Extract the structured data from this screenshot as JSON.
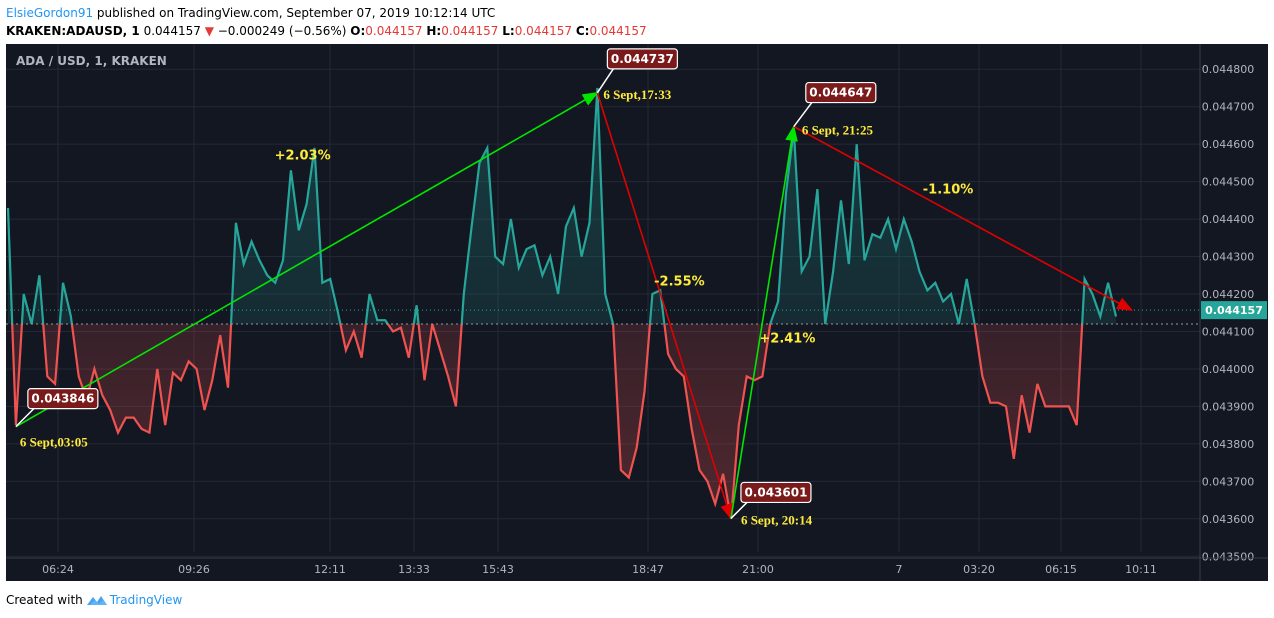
{
  "header": {
    "author": "ElsieGordon91",
    "published": "published on TradingView.com, September 07, 2019 10:12:14 UTC",
    "symbol": "KRAKEN:ADAUSD, 1",
    "last_price": "0.044157",
    "change": "−0.000249 (−0.56%)",
    "open_label": "O:",
    "open": "0.044157",
    "high_label": "H:",
    "high": "0.044157",
    "low_label": "L:",
    "low": "0.044157",
    "close_label": "C:",
    "close": "0.044157",
    "down_arrow_icon": "triangle-down-icon"
  },
  "footer": {
    "created_with": "Created with",
    "brand": "TradingView",
    "brand_icon": "tradingview-logo-icon"
  },
  "colors": {
    "background": "#131722",
    "up": "#26a69a",
    "down": "#ef5350",
    "up_arrow": "#00e600",
    "down_arrow": "#e00000",
    "annotation_text": "#ffeb3b",
    "callout_bg": "#7a1a1a"
  },
  "chart_data": {
    "type": "line",
    "title": "ADA / USD, 1, KRAKEN",
    "x_ticks": [
      "06:24",
      "09:26",
      "12:11",
      "13:33",
      "15:43",
      "18:47",
      "21:00",
      "7",
      "03:20",
      "06:15",
      "10:11"
    ],
    "y_ticks": [
      "0.044800",
      "0.044700",
      "0.044600",
      "0.044500",
      "0.044400",
      "0.044300",
      "0.044200",
      "0.044100",
      "0.044000",
      "0.043900",
      "0.043800",
      "0.043700",
      "0.043600",
      "0.043500"
    ],
    "ylim": [
      0.0435,
      0.0448
    ],
    "baseline": 0.04412,
    "current_price": "0.044157",
    "current_value": 0.044157,
    "values": [
      0.04443,
      0.04385,
      0.0442,
      0.04412,
      0.04425,
      0.04398,
      0.04396,
      0.04423,
      0.04414,
      0.04398,
      0.04392,
      0.044,
      0.04393,
      0.04389,
      0.04383,
      0.04387,
      0.04387,
      0.04384,
      0.04383,
      0.044,
      0.04385,
      0.04399,
      0.04397,
      0.04402,
      0.044,
      0.04389,
      0.04397,
      0.04409,
      0.04395,
      0.04439,
      0.04428,
      0.04434,
      0.04429,
      0.04425,
      0.04423,
      0.04429,
      0.04453,
      0.04437,
      0.04444,
      0.04459,
      0.04423,
      0.04424,
      0.04415,
      0.04405,
      0.0441,
      0.04403,
      0.0442,
      0.04413,
      0.04413,
      0.0441,
      0.04411,
      0.04403,
      0.04417,
      0.04397,
      0.04412,
      0.04405,
      0.04398,
      0.0439,
      0.0442,
      0.04438,
      0.04455,
      0.04459,
      0.0443,
      0.04428,
      0.0444,
      0.04427,
      0.04432,
      0.04433,
      0.04425,
      0.0443,
      0.0442,
      0.04438,
      0.04443,
      0.0443,
      0.04439,
      0.04475,
      0.0442,
      0.04412,
      0.04373,
      0.04371,
      0.04379,
      0.04394,
      0.0442,
      0.04421,
      0.04404,
      0.044,
      0.04398,
      0.04384,
      0.04373,
      0.0437,
      0.04364,
      0.04372,
      0.0436,
      0.04385,
      0.04398,
      0.04397,
      0.04398,
      0.04412,
      0.04418,
      0.04447,
      0.04464,
      0.04426,
      0.0443,
      0.04448,
      0.04412,
      0.04426,
      0.04445,
      0.04428,
      0.0446,
      0.04429,
      0.04436,
      0.04435,
      0.0444,
      0.04432,
      0.0444,
      0.04434,
      0.04426,
      0.04421,
      0.04423,
      0.04418,
      0.0442,
      0.04412,
      0.04424,
      0.04412,
      0.04398,
      0.04391,
      0.04391,
      0.0439,
      0.04376,
      0.04393,
      0.04383,
      0.04396,
      0.0439,
      0.0439,
      0.0439,
      0.0439,
      0.04385,
      0.04424,
      0.0442,
      0.04414,
      0.04423,
      0.04414
    ],
    "callouts": [
      {
        "price": "0.043846",
        "time": "6 Sept,03:05",
        "x_index": 1,
        "y": 0.043846
      },
      {
        "price": "0.044737",
        "time": "6 Sept,17:33",
        "x_index": 75,
        "y": 0.044737
      },
      {
        "price": "0.043601",
        "time": "6 Sept, 20:14",
        "x_index": 92,
        "y": 0.043601
      },
      {
        "price": "0.044647",
        "time": "6 Sept, 21:25",
        "x_index": 100,
        "y": 0.044647
      }
    ],
    "moves": [
      {
        "label": "+2.03%",
        "from": 0,
        "to": 1,
        "direction": "up"
      },
      {
        "label": "-2.55%",
        "from": 1,
        "to": 2,
        "direction": "down"
      },
      {
        "label": "+2.41%",
        "from": 2,
        "to": 3,
        "direction": "up"
      },
      {
        "label": "-1.10%",
        "from": 3,
        "to_index": 143,
        "to_y": 0.044157,
        "direction": "down"
      }
    ]
  }
}
